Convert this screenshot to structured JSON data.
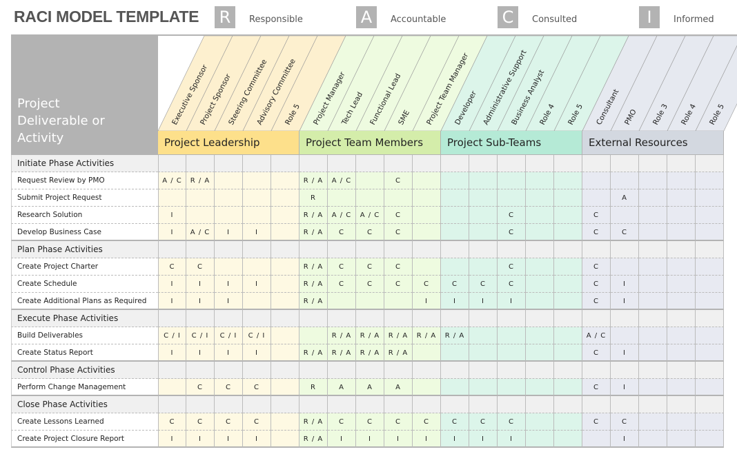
{
  "title": "RACI MODEL TEMPLATE",
  "legend": [
    {
      "letter": "R",
      "label": "Responsible"
    },
    {
      "letter": "A",
      "label": "Accountable"
    },
    {
      "letter": "C",
      "label": "Consulted"
    },
    {
      "letter": "I",
      "label": "Informed"
    }
  ],
  "corner_label": "Project Deliverable or Activity",
  "groups": [
    {
      "label": "Project Leadership",
      "color": "#fde08b",
      "stripe": "#fdf0cf",
      "cell": "#fef9e3",
      "roles": [
        "Executive Sponsor",
        "Project Sponsor",
        "Steering Committee",
        "Advisory Committee",
        "Role 5"
      ]
    },
    {
      "label": "Project Team Members",
      "color": "#d4edaa",
      "stripe": "#eefbe0",
      "cell": "#eefbe0",
      "roles": [
        "Project Manager",
        "Tech Lead",
        "Functional Lead",
        "SME",
        "Project Team Manager"
      ]
    },
    {
      "label": "Project Sub-Teams",
      "color": "#b5ead6",
      "stripe": "#dcf5ea",
      "cell": "#dcf5ea",
      "roles": [
        "Developer",
        "Administrative Support",
        "Business Analyst",
        "Role 4",
        "Role 5"
      ]
    },
    {
      "label": "External Resources",
      "color": "#d3d8e0",
      "stripe": "#e6e9f0",
      "cell": "#e8eaf2",
      "roles": [
        "Consultant",
        "PMO",
        "Role 3",
        "Role 4",
        "Role 5"
      ]
    }
  ],
  "rows": [
    {
      "type": "phase",
      "name": "Initiate Phase Activities"
    },
    {
      "type": "task",
      "name": "Request Review by PMO",
      "cells": [
        "A / C",
        "R / A",
        "",
        "",
        "",
        "R / A",
        "A / C",
        "",
        "C",
        "",
        "",
        "",
        "",
        "",
        "",
        "",
        "",
        "",
        "",
        ""
      ]
    },
    {
      "type": "task",
      "name": "Submit Project Request",
      "cells": [
        "",
        "",
        "",
        "",
        "",
        "R",
        "",
        "",
        "",
        "",
        "",
        "",
        "",
        "",
        "",
        "",
        "A",
        "",
        "",
        ""
      ]
    },
    {
      "type": "task",
      "name": "Research Solution",
      "cells": [
        "I",
        "",
        "",
        "",
        "",
        "R / A",
        "A / C",
        "A / C",
        "C",
        "",
        "",
        "",
        "C",
        "",
        "",
        "C",
        "",
        "",
        "",
        ""
      ]
    },
    {
      "type": "task",
      "name": "Develop Business Case",
      "cells": [
        "I",
        "A / C",
        "I",
        "I",
        "",
        "R / A",
        "C",
        "C",
        "C",
        "",
        "",
        "",
        "C",
        "",
        "",
        "C",
        "C",
        "",
        "",
        ""
      ]
    },
    {
      "type": "phase",
      "name": "Plan Phase Activities"
    },
    {
      "type": "task",
      "name": "Create Project Charter",
      "cells": [
        "C",
        "C",
        "",
        "",
        "",
        "R / A",
        "C",
        "C",
        "C",
        "",
        "",
        "",
        "C",
        "",
        "",
        "C",
        "",
        "",
        "",
        ""
      ]
    },
    {
      "type": "task",
      "name": "Create Schedule",
      "cells": [
        "I",
        "I",
        "I",
        "I",
        "",
        "R / A",
        "C",
        "C",
        "C",
        "C",
        "C",
        "C",
        "C",
        "",
        "",
        "C",
        "I",
        "",
        "",
        ""
      ]
    },
    {
      "type": "task",
      "name": "Create Additional Plans as Required",
      "cells": [
        "I",
        "I",
        "I",
        "",
        "",
        "R / A",
        "",
        "",
        "",
        "I",
        "I",
        "I",
        "I",
        "",
        "",
        "C",
        "I",
        "",
        "",
        ""
      ]
    },
    {
      "type": "phase",
      "name": "Execute Phase Activities"
    },
    {
      "type": "task",
      "name": "Build Deliverables",
      "cells": [
        "C / I",
        "C / I",
        "C / I",
        "C / I",
        "",
        "",
        "R / A",
        "R / A",
        "R / A",
        "R / A",
        "R / A",
        "",
        "",
        "",
        "",
        "A / C",
        "",
        "",
        "",
        ""
      ]
    },
    {
      "type": "task",
      "name": "Create Status Report",
      "cells": [
        "I",
        "I",
        "I",
        "I",
        "",
        "R / A",
        "R / A",
        "R / A",
        "R / A",
        "",
        "",
        "",
        "",
        "",
        "",
        "C",
        "I",
        "",
        "",
        ""
      ]
    },
    {
      "type": "phase",
      "name": "Control Phase Activities"
    },
    {
      "type": "task",
      "name": "Perform Change Management",
      "cells": [
        "",
        "C",
        "C",
        "C",
        "",
        "R",
        "A",
        "A",
        "A",
        "",
        "",
        "",
        "",
        "",
        "",
        "C",
        "I",
        "",
        "",
        ""
      ]
    },
    {
      "type": "phase",
      "name": "Close Phase Activities"
    },
    {
      "type": "task",
      "name": "Create Lessons Learned",
      "cells": [
        "C",
        "C",
        "C",
        "C",
        "",
        "R / A",
        "C",
        "C",
        "C",
        "C",
        "C",
        "C",
        "C",
        "",
        "",
        "C",
        "C",
        "",
        "",
        ""
      ]
    },
    {
      "type": "task",
      "name": "Create Project Closure Report",
      "cells": [
        "I",
        "I",
        "I",
        "I",
        "",
        "R / A",
        "I",
        "I",
        "I",
        "I",
        "I",
        "I",
        "I",
        "",
        "",
        "",
        "I",
        "",
        "",
        ""
      ]
    }
  ]
}
